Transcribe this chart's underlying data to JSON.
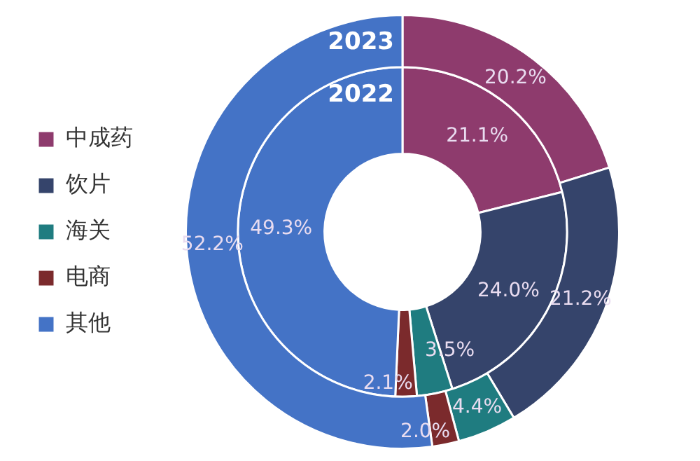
{
  "chart_data": {
    "type": "donut",
    "categories": [
      "中成药",
      "饮片",
      "海关",
      "电商",
      "其他"
    ],
    "colors": [
      "#8e3b6d",
      "#35446b",
      "#1f7c80",
      "#7b2a2c",
      "#4473c6"
    ],
    "series": [
      {
        "name": "2023",
        "values": [
          20.2,
          21.2,
          4.4,
          2.0,
          52.2
        ],
        "value_labels": [
          "20.2%",
          "21.2%",
          "4.4%",
          "2.0%",
          "52.2%"
        ]
      },
      {
        "name": "2022",
        "values": [
          21.1,
          24.0,
          3.5,
          2.1,
          49.3
        ],
        "value_labels": [
          "21.1%",
          "24.0%",
          "3.5%",
          "2.1%",
          "49.3%"
        ]
      }
    ],
    "legend": "left"
  }
}
